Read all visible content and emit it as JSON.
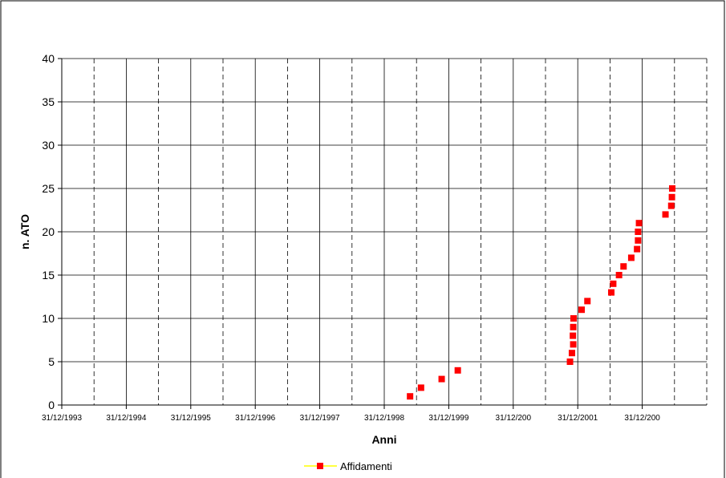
{
  "chart_data": {
    "type": "scatter",
    "title": "",
    "xlabel": "Anni",
    "ylabel": "n. ATO",
    "ylim": [
      0,
      40
    ],
    "y_ticks": [
      0,
      5,
      10,
      15,
      20,
      25,
      30,
      35,
      40
    ],
    "x_tick_labels": [
      "31/12/1993",
      "31/12/1994",
      "31/12/1995",
      "31/12/1996",
      "31/12/1997",
      "31/12/1998",
      "31/12/1999",
      "31/12/200",
      "31/12/2001",
      "31/12/200"
    ],
    "x_range_years": [
      1993.0,
      2003.0
    ],
    "grid": {
      "horizontal": "solid",
      "vertical_major": "solid",
      "vertical_minor": "dashed"
    },
    "legend": {
      "position": "bottom-center",
      "entries": [
        "Affidamenti"
      ]
    },
    "series": [
      {
        "name": "Affidamenti",
        "color": "#ff0000",
        "line_color": "#ffff00",
        "marker": "square",
        "points": [
          [
            1998.4,
            1
          ],
          [
            1998.57,
            2
          ],
          [
            1998.89,
            3
          ],
          [
            1999.14,
            4
          ],
          [
            2000.88,
            5
          ],
          [
            2000.91,
            6
          ],
          [
            2000.93,
            7
          ],
          [
            2000.925,
            8
          ],
          [
            2000.93,
            9
          ],
          [
            2000.935,
            10
          ],
          [
            2001.06,
            11
          ],
          [
            2001.15,
            12
          ],
          [
            2001.52,
            13
          ],
          [
            2001.55,
            14
          ],
          [
            2001.64,
            15
          ],
          [
            2001.71,
            16
          ],
          [
            2001.83,
            17
          ],
          [
            2001.92,
            18
          ],
          [
            2001.935,
            19
          ],
          [
            2001.935,
            20
          ],
          [
            2001.95,
            21
          ],
          [
            2002.36,
            22
          ],
          [
            2002.45,
            23
          ],
          [
            2002.46,
            24
          ],
          [
            2002.465,
            25
          ]
        ]
      }
    ]
  }
}
